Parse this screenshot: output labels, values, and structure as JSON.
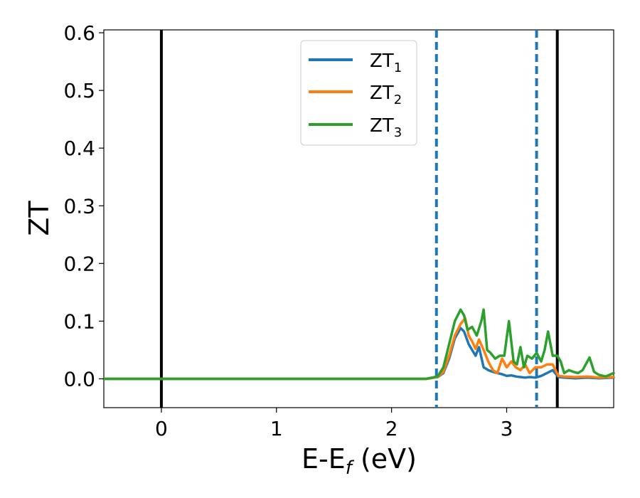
{
  "chart_data": {
    "type": "line",
    "xlabel_main": "E-E",
    "xlabel_sub": "f",
    "xlabel_unit": " (eV)",
    "ylabel": "ZT",
    "xlim": [
      -0.5,
      3.93
    ],
    "ylim": [
      -0.05,
      0.605
    ],
    "x_ticks": [
      0,
      1,
      2,
      3
    ],
    "x_tick_labels": [
      "0",
      "1",
      "2",
      "3"
    ],
    "y_ticks": [
      0.0,
      0.1,
      0.2,
      0.3,
      0.4,
      0.5,
      0.6
    ],
    "y_tick_labels": [
      "0.0",
      "0.1",
      "0.2",
      "0.3",
      "0.4",
      "0.5",
      "0.6"
    ],
    "grid": false,
    "legend_position": "top-center",
    "solid_vlines": [
      0.0,
      3.44
    ],
    "dashed_vlines": [
      2.39,
      3.26
    ],
    "solid_vline_color": "#000000",
    "dashed_vline_color": "#1f77b4",
    "series": [
      {
        "name": "ZT",
        "subscript": "1",
        "color": "#1f77b4",
        "x": [
          -0.5,
          2.3,
          2.4,
          2.45,
          2.5,
          2.55,
          2.6,
          2.63,
          2.67,
          2.7,
          2.73,
          2.76,
          2.8,
          2.84,
          2.88,
          2.92,
          2.96,
          3.0,
          3.04,
          3.08,
          3.12,
          3.16,
          3.2,
          3.25,
          3.3,
          3.35,
          3.4,
          3.45,
          3.5,
          3.6,
          3.7,
          3.8,
          3.93
        ],
        "y": [
          0.0,
          0.0,
          0.003,
          0.01,
          0.035,
          0.07,
          0.088,
          0.082,
          0.06,
          0.05,
          0.04,
          0.055,
          0.02,
          0.015,
          0.012,
          0.01,
          0.008,
          0.005,
          0.006,
          0.004,
          0.003,
          0.002,
          0.003,
          0.002,
          0.005,
          0.01,
          0.015,
          0.003,
          0.002,
          0.001,
          0.002,
          0.001,
          0.002
        ]
      },
      {
        "name": "ZT",
        "subscript": "2",
        "color": "#ff7f0e",
        "x": [
          -0.5,
          2.3,
          2.4,
          2.45,
          2.5,
          2.55,
          2.6,
          2.64,
          2.67,
          2.7,
          2.73,
          2.76,
          2.8,
          2.84,
          2.88,
          2.92,
          2.96,
          3.0,
          3.04,
          3.08,
          3.12,
          3.16,
          3.2,
          3.25,
          3.3,
          3.35,
          3.4,
          3.45,
          3.5,
          3.6,
          3.7,
          3.8,
          3.93
        ],
        "y": [
          0.0,
          0.0,
          0.003,
          0.012,
          0.04,
          0.075,
          0.095,
          0.105,
          0.075,
          0.065,
          0.052,
          0.068,
          0.05,
          0.03,
          0.015,
          0.01,
          0.035,
          0.02,
          0.03,
          0.02,
          0.015,
          0.025,
          0.01,
          0.02,
          0.02,
          0.025,
          0.025,
          0.005,
          0.004,
          0.003,
          0.004,
          0.002,
          0.003
        ]
      },
      {
        "name": "ZT",
        "subscript": "3",
        "color": "#2ca02c",
        "x": [
          -0.5,
          2.3,
          2.4,
          2.45,
          2.5,
          2.55,
          2.6,
          2.63,
          2.66,
          2.7,
          2.74,
          2.78,
          2.8,
          2.83,
          2.86,
          2.9,
          2.94,
          2.98,
          3.02,
          3.06,
          3.09,
          3.12,
          3.15,
          3.18,
          3.22,
          3.26,
          3.3,
          3.33,
          3.36,
          3.4,
          3.44,
          3.47,
          3.5,
          3.54,
          3.58,
          3.62,
          3.66,
          3.72,
          3.76,
          3.8,
          3.86,
          3.93
        ],
        "y": [
          0.0,
          0.0,
          0.004,
          0.02,
          0.06,
          0.1,
          0.12,
          0.11,
          0.085,
          0.09,
          0.075,
          0.1,
          0.12,
          0.05,
          0.045,
          0.035,
          0.04,
          0.04,
          0.1,
          0.03,
          0.025,
          0.055,
          0.02,
          0.04,
          0.035,
          0.045,
          0.03,
          0.05,
          0.082,
          0.04,
          0.04,
          0.03,
          0.01,
          0.015,
          0.012,
          0.01,
          0.015,
          0.037,
          0.012,
          0.007,
          0.004,
          0.01
        ]
      }
    ]
  }
}
